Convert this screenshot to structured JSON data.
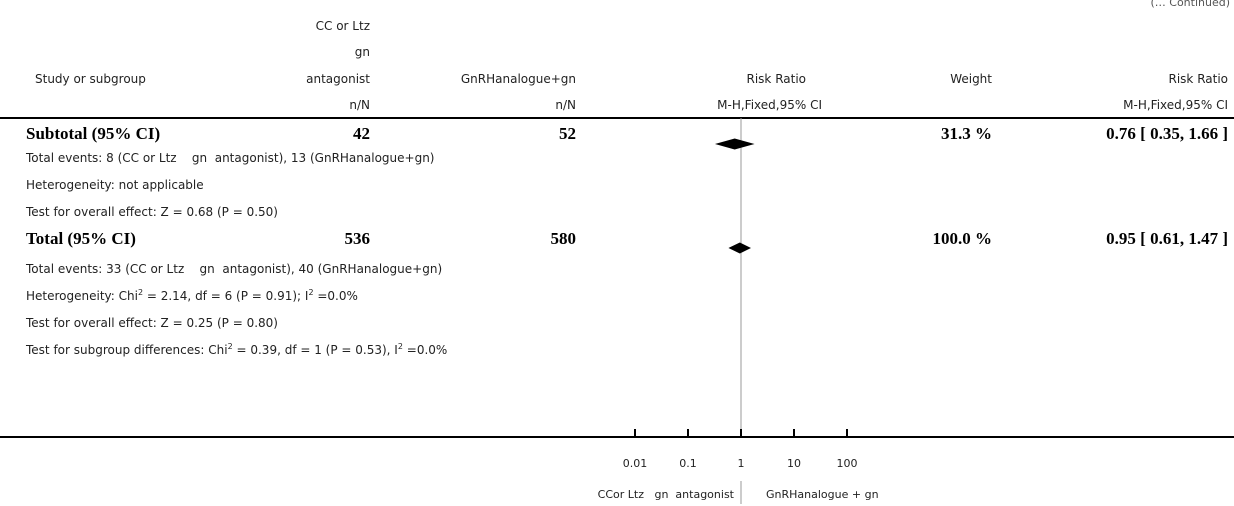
{
  "continued_label": "(… Continued)",
  "header": {
    "col_study": "Study or subgroup",
    "col_exp_line1": "CC or Ltz",
    "col_exp_line2": "gn",
    "col_exp_line3": "antagonist",
    "col_exp_unit": "n/N",
    "col_ctrl": "GnRHanalogue+gn",
    "col_ctrl_unit": "n/N",
    "col_rr": "Risk Ratio",
    "col_rr_method": "M-H,Fixed,95% CI",
    "col_weight": "Weight",
    "col_rr2": "Risk Ratio",
    "col_rr2_method": "M-H,Fixed,95% CI"
  },
  "rows": {
    "subtotal": {
      "label": "Subtotal (95% CI)",
      "exp": "42",
      "ctrl": "52",
      "weight": "31.3 %",
      "ci": "0.76 [ 0.35, 1.66 ]"
    },
    "subtotal_events": "Total events: 8 (CC or Ltz    gn  antagonist), 13 (GnRHanalogue+gn)",
    "subtotal_het": "Heterogeneity: not applicable",
    "subtotal_test": "Test for overall effect: Z = 0.68 (P = 0.50)",
    "total": {
      "label": "Total (95% CI)",
      "exp": "536",
      "ctrl": "580",
      "weight": "100.0 %",
      "ci": "0.95 [ 0.61, 1.47 ]"
    },
    "total_events": "Total events: 33 (CC or Ltz    gn  antagonist), 40 (GnRHanalogue+gn)",
    "total_het_a": "Heterogeneity: Chi",
    "total_het_b": "2",
    "total_het_c": " = 2.14, df = 6 (P = 0.91); I",
    "total_het_d": "2",
    "total_het_e": " =0.0%",
    "total_test": "Test for overall effect: Z = 0.25 (P = 0.80)",
    "subgroup_a": "Test for subgroup differences: Chi",
    "subgroup_b": "2",
    "subgroup_c": " = 0.39, df = 1 (P = 0.53), I",
    "subgroup_d": "2",
    "subgroup_e": " =0.0%"
  },
  "axis": {
    "favours_left": "CCor Ltz   gn  antagonist",
    "favours_right": "GnRHanalogue + gn"
  },
  "chart_data": {
    "type": "forest",
    "x_scale": "log",
    "xlim": [
      0.01,
      100
    ],
    "x_ticks": [
      {
        "value": 0.01,
        "label": "0.01"
      },
      {
        "value": 0.1,
        "label": "0.1"
      },
      {
        "value": 1,
        "label": "1"
      },
      {
        "value": 10,
        "label": "10"
      },
      {
        "value": 100,
        "label": "100"
      }
    ],
    "reference_line": 1,
    "estimates": [
      {
        "label": "Subtotal (95% CI)",
        "rr": 0.76,
        "lower": 0.35,
        "upper": 1.66
      },
      {
        "label": "Total (95% CI)",
        "rr": 0.95,
        "lower": 0.61,
        "upper": 1.47
      }
    ]
  }
}
